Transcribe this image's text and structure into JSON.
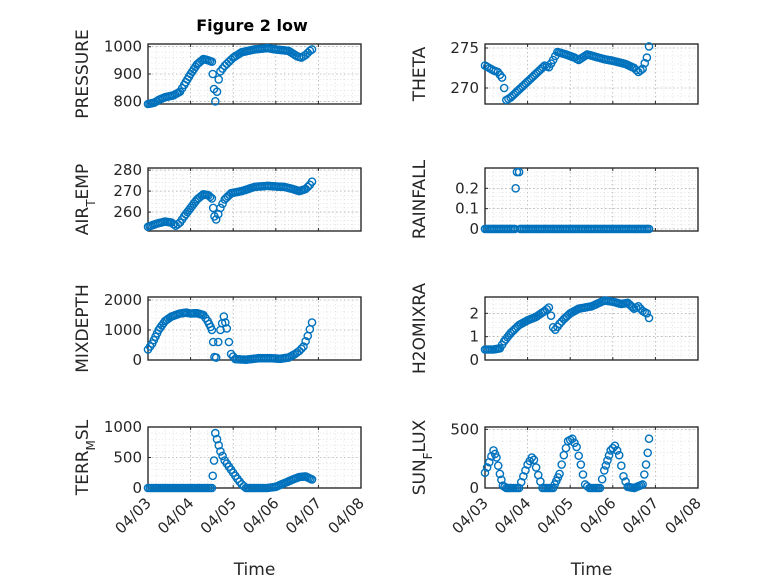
{
  "figure": {
    "title": "Figure 2 low",
    "marker_color": "#0072BD",
    "x_tick_labels": [
      "04/03",
      "04/04",
      "04/05",
      "04/06",
      "04/07",
      "04/08"
    ],
    "xlabel": "Time",
    "grid": true
  },
  "chart_data": [
    {
      "type": "scatter",
      "title": "Figure 2 low",
      "ylabel": "PRESSURE",
      "xlabel": "",
      "xlim": [
        0,
        5
      ],
      "ylim": [
        790,
        1010
      ],
      "yticks": [
        "800",
        "900",
        "1000"
      ],
      "ytick_values": [
        800,
        900,
        1000
      ],
      "curve": [
        [
          0.0,
          790
        ],
        [
          0.15,
          795
        ],
        [
          0.25,
          805
        ],
        [
          0.4,
          815
        ],
        [
          0.6,
          822
        ],
        [
          0.75,
          835
        ],
        [
          0.85,
          860
        ],
        [
          1.0,
          900
        ],
        [
          1.15,
          935
        ],
        [
          1.3,
          955
        ],
        [
          1.42,
          950
        ],
        [
          1.5,
          945
        ],
        [
          1.52,
          900
        ],
        [
          1.55,
          845
        ],
        [
          1.58,
          800
        ],
        [
          1.62,
          835
        ],
        [
          1.66,
          880
        ],
        [
          1.7,
          910
        ],
        [
          1.8,
          930
        ],
        [
          1.9,
          945
        ],
        [
          2.0,
          960
        ],
        [
          2.2,
          980
        ],
        [
          2.5,
          990
        ],
        [
          2.8,
          995
        ],
        [
          3.0,
          990
        ],
        [
          3.3,
          985
        ],
        [
          3.5,
          965
        ],
        [
          3.6,
          960
        ],
        [
          3.7,
          970
        ],
        [
          3.8,
          985
        ],
        [
          3.85,
          990
        ]
      ]
    },
    {
      "type": "scatter",
      "ylabel": "THETA",
      "xlabel": "",
      "xlim": [
        0,
        5
      ],
      "ylim": [
        268,
        275.5
      ],
      "yticks": [
        "270",
        "275"
      ],
      "ytick_values": [
        270,
        275
      ],
      "curve": [
        [
          0.0,
          272.8
        ],
        [
          0.1,
          272.5
        ],
        [
          0.2,
          272.2
        ],
        [
          0.3,
          272.0
        ],
        [
          0.4,
          271.3
        ],
        [
          0.45,
          270.0
        ],
        [
          0.5,
          268.5
        ],
        [
          0.6,
          268.8
        ],
        [
          0.8,
          269.8
        ],
        [
          1.0,
          270.8
        ],
        [
          1.2,
          271.8
        ],
        [
          1.4,
          272.8
        ],
        [
          1.5,
          272.6
        ],
        [
          1.6,
          273.5
        ],
        [
          1.7,
          274.5
        ],
        [
          1.9,
          274.2
        ],
        [
          2.1,
          273.8
        ],
        [
          2.2,
          273.5
        ],
        [
          2.4,
          274.2
        ],
        [
          2.6,
          273.9
        ],
        [
          2.8,
          273.6
        ],
        [
          3.0,
          273.4
        ],
        [
          3.3,
          273.0
        ],
        [
          3.5,
          272.5
        ],
        [
          3.6,
          272.0
        ],
        [
          3.7,
          272.4
        ],
        [
          3.8,
          273.8
        ],
        [
          3.85,
          275.2
        ]
      ]
    },
    {
      "type": "scatter",
      "ylabel": "AIR_TEMP",
      "xlabel": "",
      "xlim": [
        0,
        5
      ],
      "ylim": [
        251,
        281
      ],
      "yticks": [
        "260",
        "270",
        "280"
      ],
      "ytick_values": [
        260,
        270,
        280
      ],
      "curve": [
        [
          0.0,
          253
        ],
        [
          0.2,
          254.5
        ],
        [
          0.4,
          255.5
        ],
        [
          0.55,
          255.0
        ],
        [
          0.65,
          253.5
        ],
        [
          0.75,
          255.0
        ],
        [
          0.85,
          258.0
        ],
        [
          1.0,
          262.0
        ],
        [
          1.15,
          266.0
        ],
        [
          1.3,
          268.5
        ],
        [
          1.42,
          268.0
        ],
        [
          1.5,
          266.5
        ],
        [
          1.53,
          262.0
        ],
        [
          1.56,
          258.0
        ],
        [
          1.6,
          256.5
        ],
        [
          1.65,
          259.0
        ],
        [
          1.7,
          262.0
        ],
        [
          1.8,
          266.0
        ],
        [
          1.95,
          269.0
        ],
        [
          2.2,
          270.0
        ],
        [
          2.5,
          272.0
        ],
        [
          2.8,
          272.5
        ],
        [
          3.0,
          272.2
        ],
        [
          3.2,
          272.0
        ],
        [
          3.4,
          271.0
        ],
        [
          3.55,
          270.0
        ],
        [
          3.7,
          271.0
        ],
        [
          3.8,
          273.0
        ],
        [
          3.85,
          274.5
        ]
      ]
    },
    {
      "type": "scatter",
      "ylabel": "RAINFALL",
      "xlabel": "",
      "xlim": [
        0,
        5
      ],
      "ylim": [
        -0.01,
        0.3
      ],
      "yticks": [
        "0",
        "0.1",
        "0.2"
      ],
      "ytick_values": [
        0,
        0.1,
        0.2
      ],
      "curve": [
        [
          0.0,
          0.0
        ],
        [
          0.7,
          0.0
        ],
        [
          0.72,
          0.2
        ],
        [
          0.75,
          0.28
        ],
        [
          0.8,
          0.28
        ],
        [
          0.83,
          0.0
        ],
        [
          3.85,
          0.0
        ]
      ]
    },
    {
      "type": "scatter",
      "ylabel": "MIXDEPTH",
      "xlabel": "",
      "xlim": [
        0,
        5
      ],
      "ylim": [
        0,
        2100
      ],
      "yticks": [
        "0",
        "1000",
        "2000"
      ],
      "ytick_values": [
        0,
        1000,
        2000
      ],
      "curve": [
        [
          0.0,
          350
        ],
        [
          0.1,
          550
        ],
        [
          0.25,
          1000
        ],
        [
          0.4,
          1300
        ],
        [
          0.55,
          1450
        ],
        [
          0.75,
          1550
        ],
        [
          0.9,
          1580
        ],
        [
          1.0,
          1550
        ],
        [
          1.15,
          1560
        ],
        [
          1.3,
          1500
        ],
        [
          1.4,
          1300
        ],
        [
          1.47,
          1100
        ],
        [
          1.5,
          1000
        ],
        [
          1.53,
          600
        ],
        [
          1.56,
          100
        ],
        [
          1.6,
          80
        ],
        [
          1.65,
          600
        ],
        [
          1.7,
          1000
        ],
        [
          1.78,
          1450
        ],
        [
          1.85,
          1050
        ],
        [
          1.9,
          600
        ],
        [
          1.95,
          200
        ],
        [
          2.05,
          30
        ],
        [
          2.3,
          10
        ],
        [
          2.6,
          60
        ],
        [
          2.9,
          60
        ],
        [
          3.1,
          40
        ],
        [
          3.3,
          80
        ],
        [
          3.45,
          200
        ],
        [
          3.55,
          300
        ],
        [
          3.65,
          450
        ],
        [
          3.75,
          800
        ],
        [
          3.85,
          1250
        ]
      ]
    },
    {
      "type": "scatter",
      "ylabel": "H2OMIXRA",
      "xlabel": "",
      "xlim": [
        0,
        5
      ],
      "ylim": [
        0,
        2.7
      ],
      "yticks": [
        "0",
        "1",
        "2"
      ],
      "ytick_values": [
        0,
        1,
        2
      ],
      "curve": [
        [
          0.0,
          0.45
        ],
        [
          0.2,
          0.45
        ],
        [
          0.35,
          0.5
        ],
        [
          0.45,
          0.8
        ],
        [
          0.6,
          1.15
        ],
        [
          0.8,
          1.5
        ],
        [
          1.0,
          1.7
        ],
        [
          1.2,
          1.85
        ],
        [
          1.4,
          2.1
        ],
        [
          1.5,
          2.25
        ],
        [
          1.55,
          1.9
        ],
        [
          1.6,
          1.4
        ],
        [
          1.65,
          1.3
        ],
        [
          1.75,
          1.55
        ],
        [
          1.85,
          1.75
        ],
        [
          2.0,
          2.0
        ],
        [
          2.2,
          2.2
        ],
        [
          2.5,
          2.3
        ],
        [
          2.8,
          2.55
        ],
        [
          3.0,
          2.5
        ],
        [
          3.2,
          2.4
        ],
        [
          3.35,
          2.45
        ],
        [
          3.5,
          2.2
        ],
        [
          3.6,
          2.3
        ],
        [
          3.7,
          2.1
        ],
        [
          3.8,
          2.0
        ],
        [
          3.85,
          1.8
        ]
      ]
    },
    {
      "type": "scatter",
      "ylabel": "TERR_MSL",
      "xlabel": "Time",
      "xlim": [
        0,
        5
      ],
      "ylim": [
        0,
        1000
      ],
      "yticks": [
        "0",
        "500",
        "1000"
      ],
      "ytick_values": [
        0,
        500,
        1000
      ],
      "xticks": [
        "04/03",
        "04/04",
        "04/05",
        "04/06",
        "04/07",
        "04/08"
      ],
      "curve": [
        [
          0.0,
          0
        ],
        [
          1.5,
          0
        ],
        [
          1.52,
          200
        ],
        [
          1.55,
          450
        ],
        [
          1.58,
          900
        ],
        [
          1.62,
          800
        ],
        [
          1.7,
          600
        ],
        [
          1.8,
          450
        ],
        [
          1.9,
          350
        ],
        [
          2.0,
          250
        ],
        [
          2.1,
          150
        ],
        [
          2.2,
          60
        ],
        [
          2.3,
          0
        ],
        [
          2.8,
          0
        ],
        [
          3.0,
          20
        ],
        [
          3.2,
          80
        ],
        [
          3.4,
          140
        ],
        [
          3.55,
          180
        ],
        [
          3.7,
          190
        ],
        [
          3.85,
          140
        ]
      ]
    },
    {
      "type": "scatter",
      "ylabel": "SUN_FLUX",
      "xlabel": "Time",
      "xlim": [
        0,
        5
      ],
      "ylim": [
        0,
        520
      ],
      "yticks": [
        "0",
        "500"
      ],
      "ytick_values": [
        0,
        500
      ],
      "xticks": [
        "04/03",
        "04/04",
        "04/05",
        "04/06",
        "04/07",
        "04/08"
      ],
      "curve": [
        [
          0.0,
          130
        ],
        [
          0.1,
          220
        ],
        [
          0.2,
          320
        ],
        [
          0.27,
          260
        ],
        [
          0.35,
          120
        ],
        [
          0.42,
          20
        ],
        [
          0.5,
          0
        ],
        [
          0.8,
          0
        ],
        [
          0.9,
          100
        ],
        [
          1.0,
          200
        ],
        [
          1.1,
          260
        ],
        [
          1.15,
          240
        ],
        [
          1.25,
          110
        ],
        [
          1.35,
          0
        ],
        [
          1.6,
          0
        ],
        [
          1.75,
          120
        ],
        [
          1.85,
          280
        ],
        [
          1.95,
          400
        ],
        [
          2.05,
          420
        ],
        [
          2.15,
          350
        ],
        [
          2.25,
          200
        ],
        [
          2.35,
          30
        ],
        [
          2.45,
          0
        ],
        [
          2.7,
          0
        ],
        [
          2.8,
          150
        ],
        [
          2.95,
          320
        ],
        [
          3.05,
          360
        ],
        [
          3.15,
          280
        ],
        [
          3.25,
          100
        ],
        [
          3.35,
          10
        ],
        [
          3.5,
          0
        ],
        [
          3.7,
          30
        ],
        [
          3.78,
          200
        ],
        [
          3.82,
          300
        ],
        [
          3.85,
          420
        ]
      ]
    }
  ]
}
